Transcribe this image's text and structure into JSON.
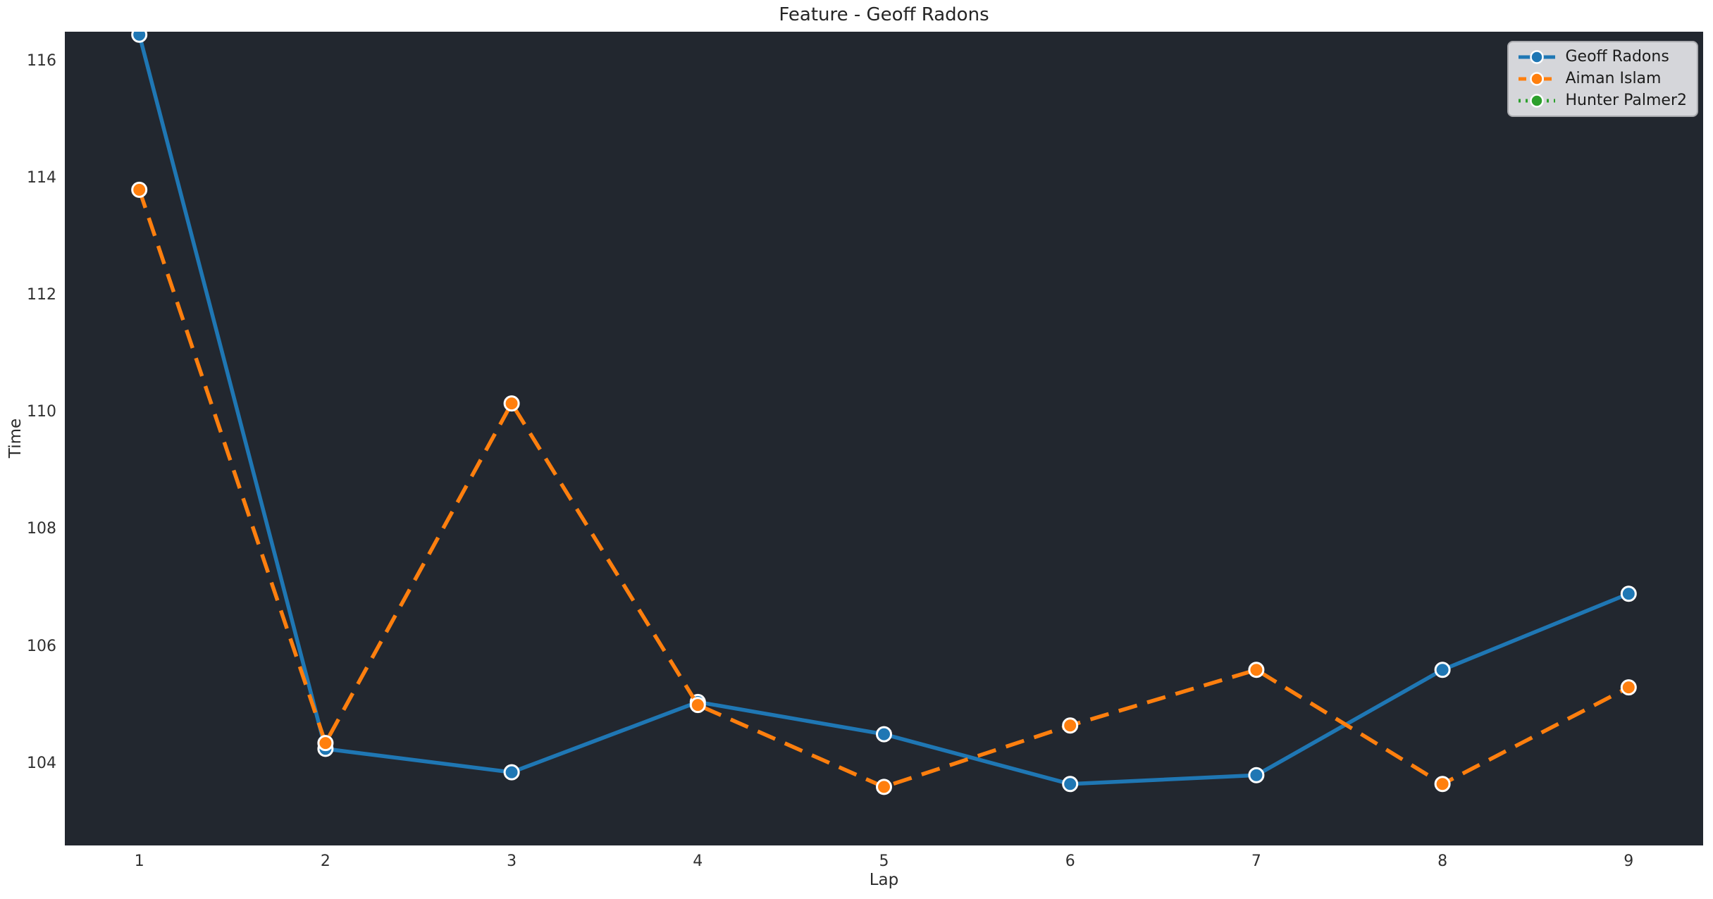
{
  "chart_data": {
    "type": "line",
    "title": "Feature - Geoff Radons",
    "xlabel": "Lap",
    "ylabel": "Time",
    "x": [
      1,
      2,
      3,
      4,
      5,
      6,
      7,
      8,
      9
    ],
    "xticks": [
      1,
      2,
      3,
      4,
      5,
      6,
      7,
      8,
      9
    ],
    "yticks": [
      104,
      106,
      108,
      110,
      112,
      114,
      116
    ],
    "xlim": [
      0.6,
      9.4
    ],
    "ylim": [
      102.6,
      116.5
    ],
    "grid": false,
    "legend_position": "upper right",
    "series": [
      {
        "name": "Geoff Radons",
        "color": "#1f77b4",
        "line_style": "solid",
        "marker": "circle",
        "values": [
          116.45,
          104.25,
          103.85,
          105.05,
          104.5,
          103.65,
          103.8,
          105.6,
          106.9
        ]
      },
      {
        "name": "Aiman Islam",
        "color": "#ff7f0e",
        "line_style": "dashed",
        "marker": "circle",
        "values": [
          113.8,
          104.35,
          110.15,
          105.0,
          103.6,
          104.65,
          105.6,
          103.65,
          105.3
        ]
      },
      {
        "name": "Hunter Palmer2",
        "color": "#2ca02c",
        "line_style": "dotted",
        "marker": "circle",
        "values": []
      }
    ],
    "style": {
      "plot_bg": "#22272f",
      "figure_bg": "#ffffff",
      "marker_edge": "#ffffff",
      "text_color": "#2b2b2b",
      "legend_bg": "#d5d6da",
      "legend_border": "#a9aaae",
      "legend_text": "#1c1c1c",
      "line_width": 5.5,
      "marker_radius": 10
    }
  }
}
